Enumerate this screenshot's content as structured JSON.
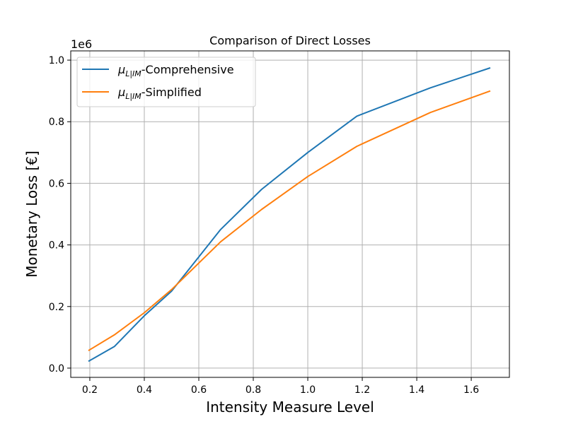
{
  "chart_data": {
    "type": "line",
    "title": "Comparison of Direct Losses",
    "xlabel": "Intensity Measure Level",
    "ylabel": "Monetary Loss [€]",
    "y_offset_label": "1e6",
    "xlim": [
      0.13,
      1.74
    ],
    "ylim": [
      -0.03,
      1.03
    ],
    "xticks": [
      0.2,
      0.4,
      0.6,
      0.8,
      1.0,
      1.2,
      1.4,
      1.6
    ],
    "xtick_labels": [
      "0.2",
      "0.4",
      "0.6",
      "0.8",
      "1.0",
      "1.2",
      "1.4",
      "1.6"
    ],
    "yticks": [
      0.0,
      0.2,
      0.4,
      0.6,
      0.8,
      1.0
    ],
    "ytick_labels": [
      "0.0",
      "0.2",
      "0.4",
      "0.6",
      "0.8",
      "1.0"
    ],
    "grid": true,
    "legend_position": "top-left",
    "series": [
      {
        "name_symbol": "μ",
        "name_subscript": "L|IM",
        "name_suffix": "-Comprehensive",
        "color": "#1f77b4",
        "x": [
          0.195,
          0.29,
          0.4,
          0.5,
          0.68,
          0.83,
          1.0,
          1.18,
          1.45,
          1.67
        ],
        "y": [
          0.022,
          0.07,
          0.17,
          0.25,
          0.45,
          0.58,
          0.7,
          0.818,
          0.91,
          0.975
        ]
      },
      {
        "name_symbol": "μ",
        "name_subscript": "L|IM",
        "name_suffix": "-Simplified",
        "color": "#ff7f0e",
        "x": [
          0.195,
          0.29,
          0.4,
          0.5,
          0.68,
          0.83,
          1.0,
          1.18,
          1.45,
          1.67
        ],
        "y": [
          0.057,
          0.108,
          0.18,
          0.255,
          0.41,
          0.515,
          0.622,
          0.72,
          0.83,
          0.9
        ]
      }
    ]
  }
}
